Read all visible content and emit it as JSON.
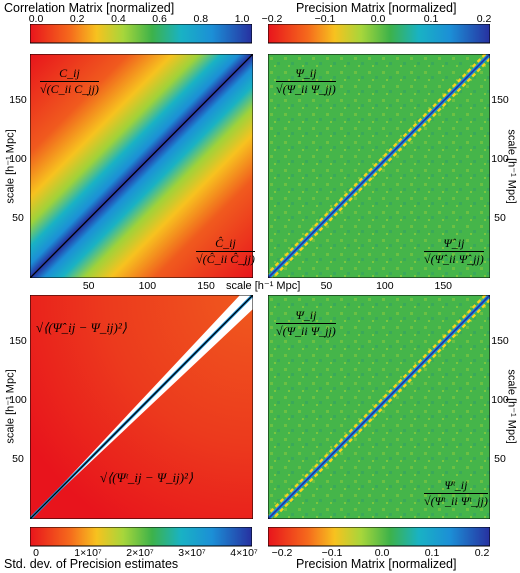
{
  "chart_data": [
    {
      "type": "heatmap",
      "name": "correlation_matrix",
      "title": "Correlation Matrix [normalized]",
      "colorbar_ticks": [
        "0.0",
        "0.2",
        "0.4",
        "0.6",
        "0.8",
        "1.0"
      ],
      "clim": [
        0,
        1
      ],
      "x_ticks": [
        "50",
        "100",
        "150"
      ],
      "y_ticks": [
        "50",
        "100",
        "150"
      ],
      "xlabel": "scale [h⁻¹ Mpc]",
      "ylabel": "scale [h⁻¹ Mpc]",
      "upper_label_num": "C_ij",
      "upper_label_den": "√(C_ii C_jj)",
      "lower_label_num": "Ĉ_ij",
      "lower_label_den": "√(Ĉ_ii Ĉ_jj)"
    },
    {
      "type": "heatmap",
      "name": "precision_matrix_top",
      "title": "Precision Matrix [normalized]",
      "colorbar_ticks": [
        "−0.2",
        "−0.1",
        "0.0",
        "0.1",
        "0.2"
      ],
      "clim": [
        -0.2,
        0.2
      ],
      "x_ticks": [
        "50",
        "100",
        "150"
      ],
      "y_ticks": [
        "50",
        "100",
        "150"
      ],
      "ylabel": "scale [h⁻¹ Mpc]",
      "upper_label_num": "Ψ_ij",
      "upper_label_den": "√(Ψ_ii Ψ_jj)",
      "lower_label_num": "Ψ̂_ij",
      "lower_label_den": "√(Ψ̂_ii Ψ̂_jj)"
    },
    {
      "type": "heatmap",
      "name": "precision_std_dev",
      "title": "Std. dev. of Precision estimates",
      "colorbar_ticks": [
        "0",
        "1×10⁷",
        "2×10⁷",
        "3×10⁷",
        "4×10⁷"
      ],
      "clim": [
        0,
        40000000
      ],
      "y_ticks": [
        "50",
        "100",
        "150"
      ],
      "ylabel": "scale [h⁻¹ Mpc]",
      "upper_label": "√⟨(Ψ̂_ij − Ψ_ij)²⟩",
      "lower_label": "√⟨(Ψᵗ_ij − Ψ_ij)²⟩"
    },
    {
      "type": "heatmap",
      "name": "precision_matrix_bottom",
      "title": "Precision Matrix [normalized]",
      "colorbar_ticks": [
        "−0.2",
        "−0.1",
        "0.0",
        "0.1",
        "0.2"
      ],
      "clim": [
        -0.2,
        0.2
      ],
      "y_ticks": [
        "50",
        "100",
        "150"
      ],
      "ylabel": "scale [h⁻¹ Mpc]",
      "upper_label_num": "Ψ_ij",
      "upper_label_den": "√(Ψ_ii Ψ_jj)",
      "lower_label_num": "Ψᵗ_ij",
      "lower_label_den": "√(Ψᵗ_ii Ψᵗ_jj)"
    }
  ]
}
